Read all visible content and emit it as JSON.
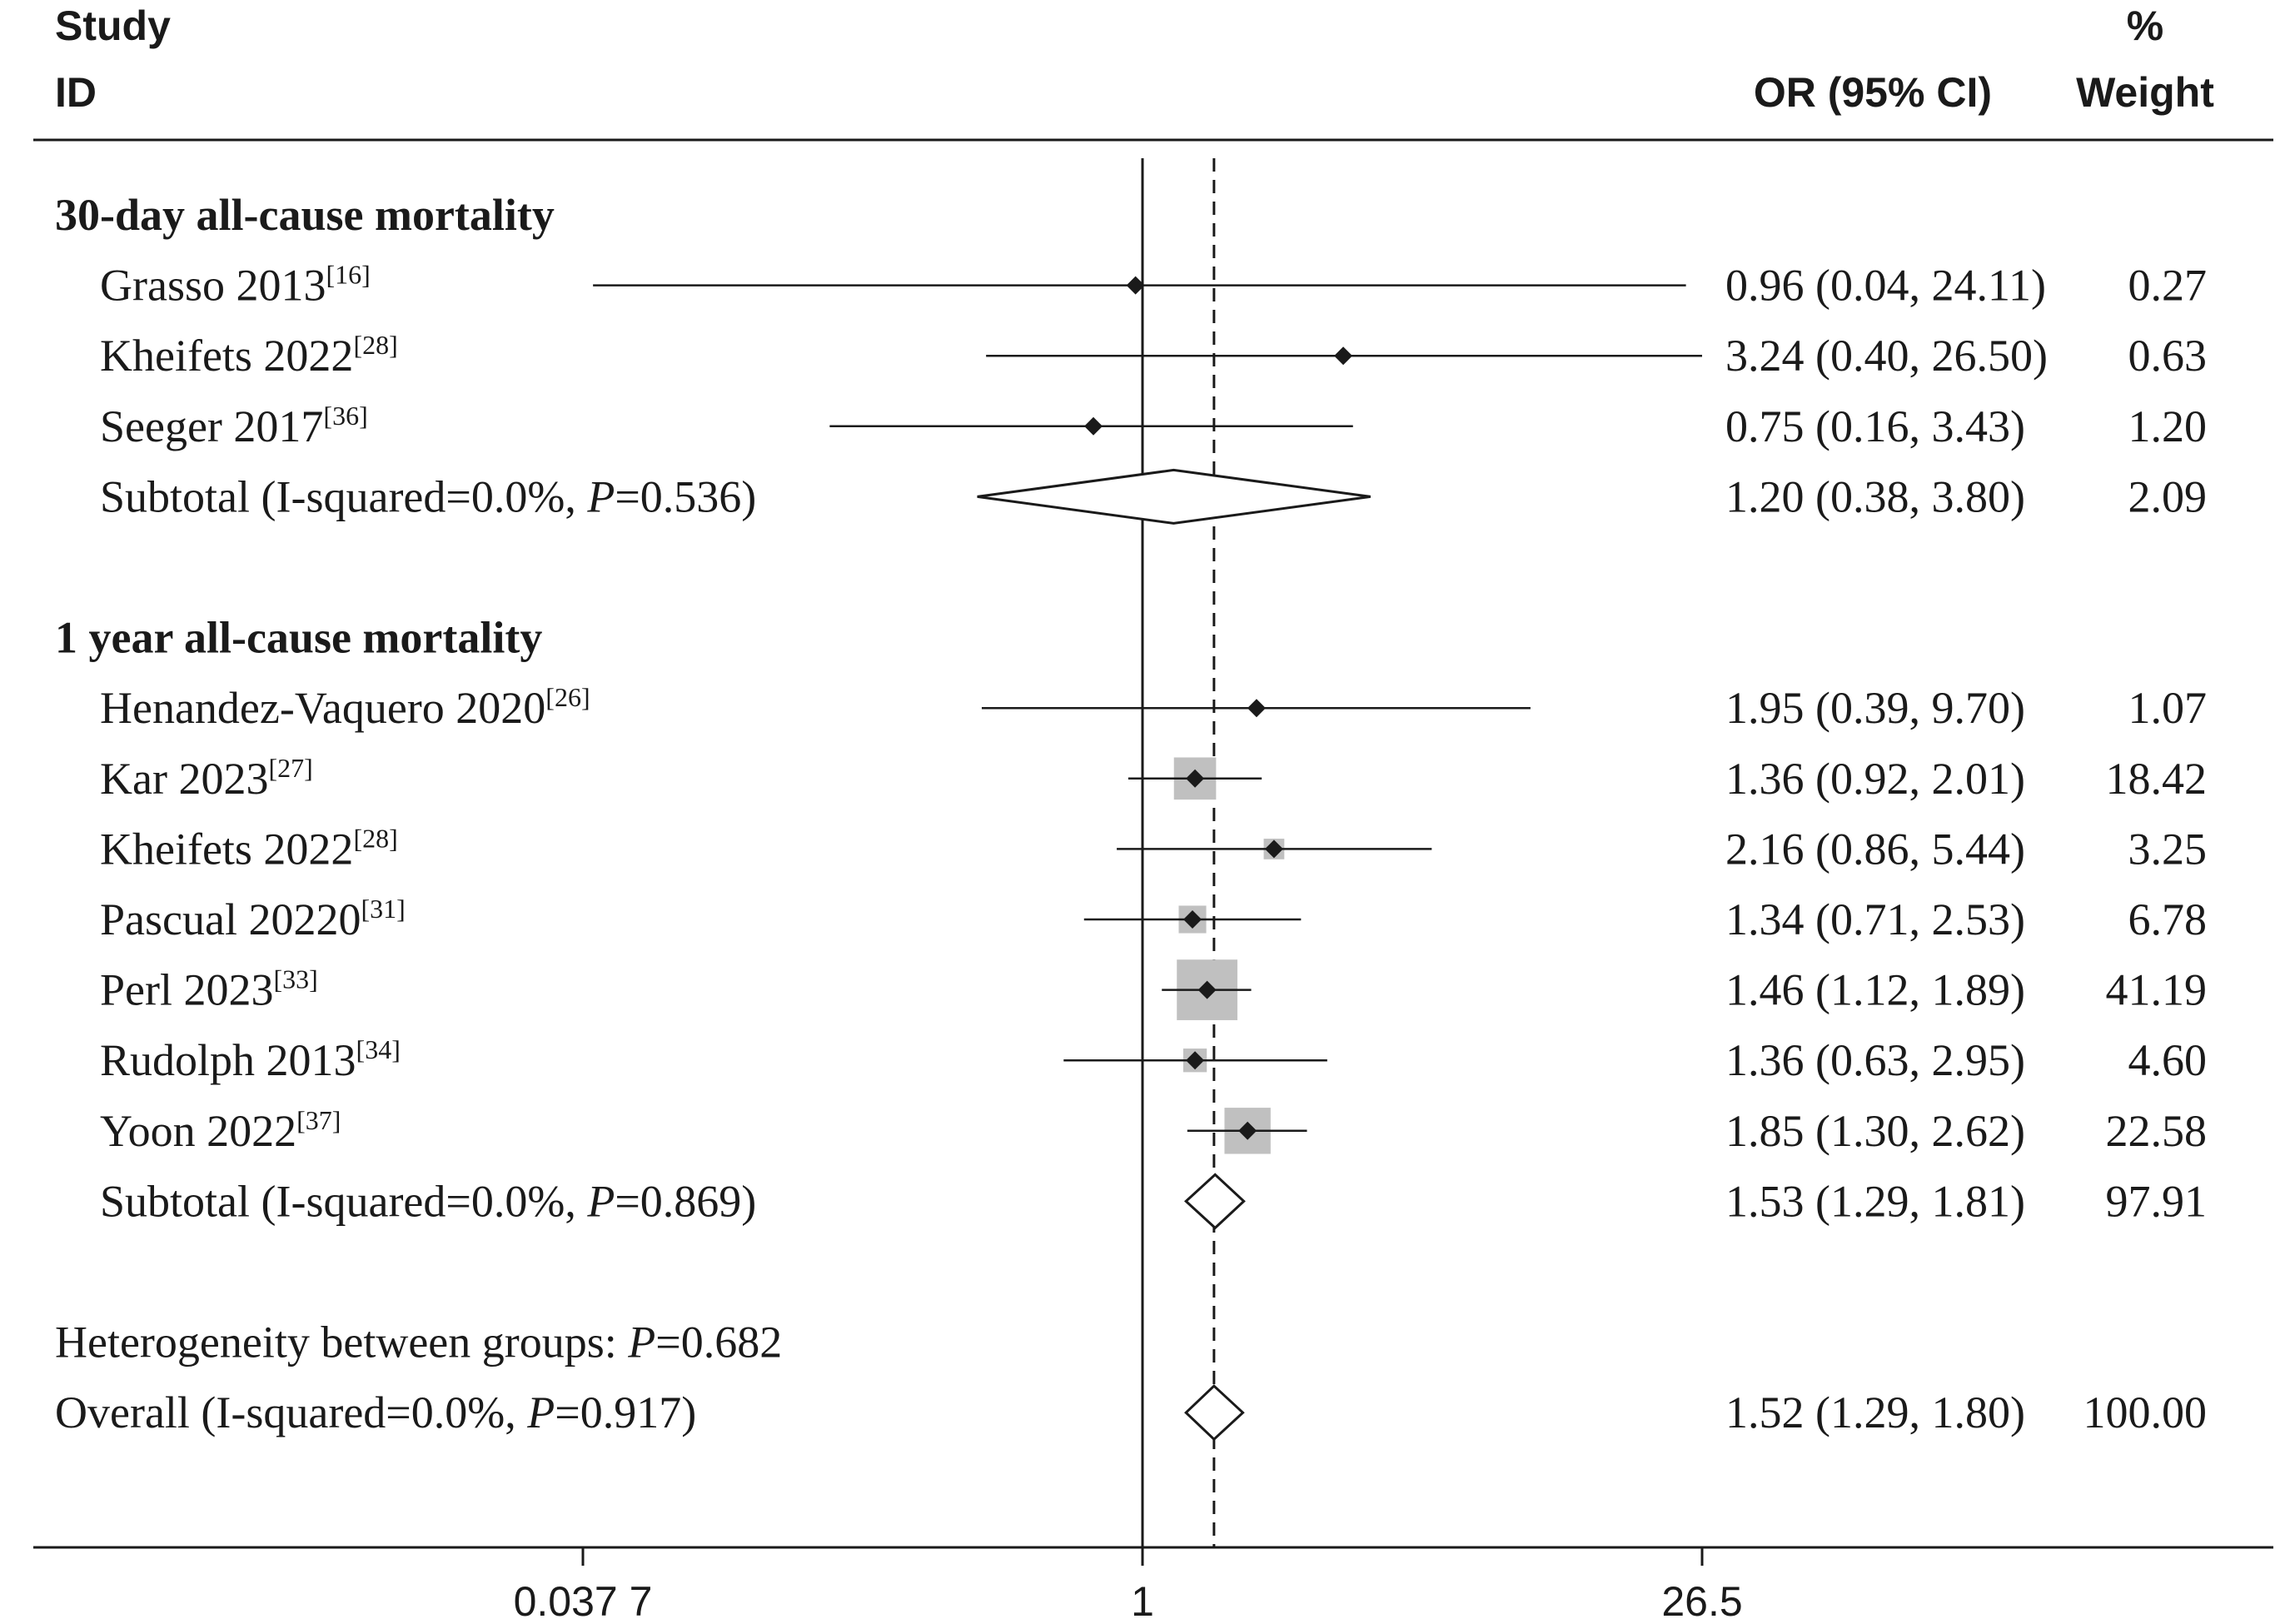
{
  "header": {
    "col1_line1": "Study",
    "col1_line2": "ID",
    "col2": "OR (95% CI)",
    "col3_line1": "%",
    "col3_line2": "Weight"
  },
  "chart_data": {
    "type": "forest",
    "scale": "log",
    "null_value": 1,
    "pooled_reference": 1.52,
    "x_ticks": [
      0.0377,
      1,
      26.5
    ],
    "x_tick_labels": [
      "0.037 7",
      "1",
      "26.5"
    ],
    "xlim": [
      0.0377,
      26.5
    ],
    "groups": [
      {
        "name": "30-day all-cause mortality",
        "studies": [
          {
            "label": "Grasso 2013",
            "ref": "[16]",
            "or": 0.96,
            "lo": 0.04,
            "hi": 24.11,
            "or_text": "0.96 (0.04, 24.11)",
            "weight": 0.27,
            "weight_text": "0.27"
          },
          {
            "label": "Kheifets 2022",
            "ref": "[28]",
            "or": 3.24,
            "lo": 0.4,
            "hi": 26.5,
            "or_text": "3.24 (0.40, 26.50)",
            "weight": 0.63,
            "weight_text": "0.63"
          },
          {
            "label": "Seeger 2017",
            "ref": "[36]",
            "or": 0.75,
            "lo": 0.16,
            "hi": 3.43,
            "or_text": "0.75 (0.16, 3.43)",
            "weight": 1.2,
            "weight_text": "1.20"
          }
        ],
        "subtotal": {
          "label_prefix": "Subtotal (I-squared=0.0%, ",
          "p_symbol": "P",
          "p_text": "=0.536)",
          "or": 1.2,
          "lo": 0.38,
          "hi": 3.8,
          "or_text": "1.20 (0.38, 3.80)",
          "weight_text": "2.09"
        }
      },
      {
        "name": "1 year all-cause mortality",
        "studies": [
          {
            "label": "Henandez-Vaquero 2020",
            "ref": "[26]",
            "or": 1.95,
            "lo": 0.39,
            "hi": 9.7,
            "or_text": "1.95 (0.39, 9.70)",
            "weight": 1.07,
            "weight_text": "1.07"
          },
          {
            "label": "Kar 2023",
            "ref": "[27]",
            "or": 1.36,
            "lo": 0.92,
            "hi": 2.01,
            "or_text": "1.36 (0.92, 2.01)",
            "weight": 18.42,
            "weight_text": "18.42"
          },
          {
            "label": "Kheifets 2022",
            "ref": "[28]",
            "or": 2.16,
            "lo": 0.86,
            "hi": 5.44,
            "or_text": "2.16 (0.86, 5.44)",
            "weight": 3.25,
            "weight_text": "3.25"
          },
          {
            "label": "Pascual 20220",
            "ref": "[31]",
            "or": 1.34,
            "lo": 0.71,
            "hi": 2.53,
            "or_text": "1.34 (0.71, 2.53)",
            "weight": 6.78,
            "weight_text": "6.78"
          },
          {
            "label": "Perl 2023",
            "ref": "[33]",
            "or": 1.46,
            "lo": 1.12,
            "hi": 1.89,
            "or_text": "1.46 (1.12, 1.89)",
            "weight": 41.19,
            "weight_text": "41.19"
          },
          {
            "label": "Rudolph 2013",
            "ref": "[34]",
            "or": 1.36,
            "lo": 0.63,
            "hi": 2.95,
            "or_text": "1.36 (0.63, 2.95)",
            "weight": 4.6,
            "weight_text": "4.60"
          },
          {
            "label": "Yoon 2022",
            "ref": "[37]",
            "or": 1.85,
            "lo": 1.3,
            "hi": 2.62,
            "or_text": "1.85 (1.30, 2.62)",
            "weight": 22.58,
            "weight_text": "22.58"
          }
        ],
        "subtotal": {
          "label_prefix": "Subtotal (I-squared=0.0%, ",
          "p_symbol": "P",
          "p_text": "=0.869)",
          "or": 1.53,
          "lo": 1.29,
          "hi": 1.81,
          "or_text": "1.53 (1.29, 1.81)",
          "weight_text": "97.91"
        }
      }
    ],
    "heterogeneity": {
      "label_prefix": "Heterogeneity between groups: ",
      "p_symbol": "P",
      "p_text": "=0.682"
    },
    "overall": {
      "label_prefix": "Overall  (I-squared=0.0%, ",
      "p_symbol": "P",
      "p_text": "=0.917)",
      "or": 1.52,
      "lo": 1.29,
      "hi": 1.8,
      "or_text": "1.52 (1.29, 1.80)",
      "weight_text": "100.00"
    }
  }
}
